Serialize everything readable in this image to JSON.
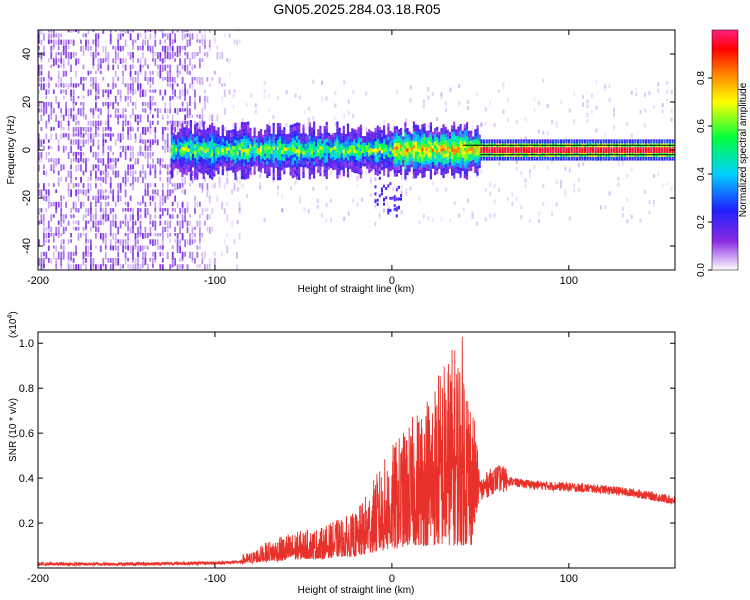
{
  "title": "GN05.2025.284.03.18.R05",
  "colors": {
    "snr_line": "#e8312a",
    "spectrogram_noise": "#7a2be0",
    "frame": "#000000"
  },
  "chart_data": [
    {
      "type": "heatmap",
      "name": "spectrogram",
      "xlabel": "Height of straight line (km)",
      "ylabel": "Frequency (Hz)",
      "xlim": [
        -200,
        160
      ],
      "ylim": [
        -50,
        50
      ],
      "xticks": [
        -200,
        -100,
        0,
        100
      ],
      "xtick_labels": [
        "-200",
        "-100",
        "0",
        "100"
      ],
      "yticks": [
        -40,
        -20,
        0,
        20,
        40
      ],
      "ytick_labels": [
        "-40",
        "-20",
        "0",
        "20",
        "40"
      ],
      "colorbar": {
        "label": "Normalized spectral amplitude",
        "range": [
          0,
          1
        ],
        "ticks": [
          0.0,
          0.2,
          0.4,
          0.6,
          0.8
        ],
        "tick_labels": [
          "0.0",
          "0.2",
          "0.4",
          "0.6",
          "0.8"
        ],
        "colormap": [
          "#ffffff",
          "#8a2be2",
          "#2020ff",
          "#00d0ff",
          "#00ff40",
          "#ffff00",
          "#ff8000",
          "#ff0000",
          "#ff2080"
        ]
      },
      "features": [
        {
          "desc": "broadband noise",
          "x_range": [
            -200,
            -88
          ],
          "freq_range": [
            -50,
            50
          ]
        },
        {
          "desc": "spectral band",
          "x_range": [
            -125,
            50
          ],
          "freq_center": 0,
          "half_width": [
            6,
            12
          ]
        },
        {
          "desc": "narrow tone",
          "x_range": [
            50,
            160
          ],
          "freq_center": 0,
          "half_width": [
            2,
            4
          ]
        }
      ]
    },
    {
      "type": "line",
      "name": "snr",
      "xlabel": "Height of straight line (km)",
      "ylabel": "SNR (10 * v/v)",
      "scale_label": "(x10",
      "scale_exponent": "4",
      "scale_close": ")",
      "xlim": [
        -200,
        160
      ],
      "ylim": [
        0,
        1.05
      ],
      "xticks": [
        -200,
        -100,
        0,
        100
      ],
      "xtick_labels": [
        "-200",
        "-100",
        "0",
        "100"
      ],
      "yticks": [
        0.2,
        0.4,
        0.6,
        0.8,
        1.0
      ],
      "ytick_labels": [
        "0.2",
        "0.4",
        "0.6",
        "0.8",
        "1.0"
      ],
      "series": [
        {
          "name": "SNR",
          "x": [
            -200,
            -150,
            -100,
            -80,
            -70,
            -60,
            -50,
            -40,
            -30,
            -20,
            -10,
            0,
            10,
            20,
            30,
            40,
            45,
            50,
            55,
            60,
            70,
            80,
            100,
            120,
            140,
            160
          ],
          "envelope": [
            0.02,
            0.02,
            0.03,
            0.07,
            0.12,
            0.15,
            0.17,
            0.18,
            0.22,
            0.25,
            0.4,
            0.55,
            0.65,
            0.8,
            0.95,
            1.05,
            0.8,
            0.4,
            0.5,
            0.45,
            0.42,
            0.4,
            0.38,
            0.38,
            0.36,
            0.33
          ],
          "base": [
            0.01,
            0.01,
            0.015,
            0.02,
            0.03,
            0.03,
            0.04,
            0.04,
            0.05,
            0.05,
            0.07,
            0.08,
            0.1,
            0.1,
            0.1,
            0.1,
            0.1,
            0.34,
            0.38,
            0.4,
            0.38,
            0.37,
            0.36,
            0.35,
            0.33,
            0.3
          ]
        }
      ]
    }
  ]
}
